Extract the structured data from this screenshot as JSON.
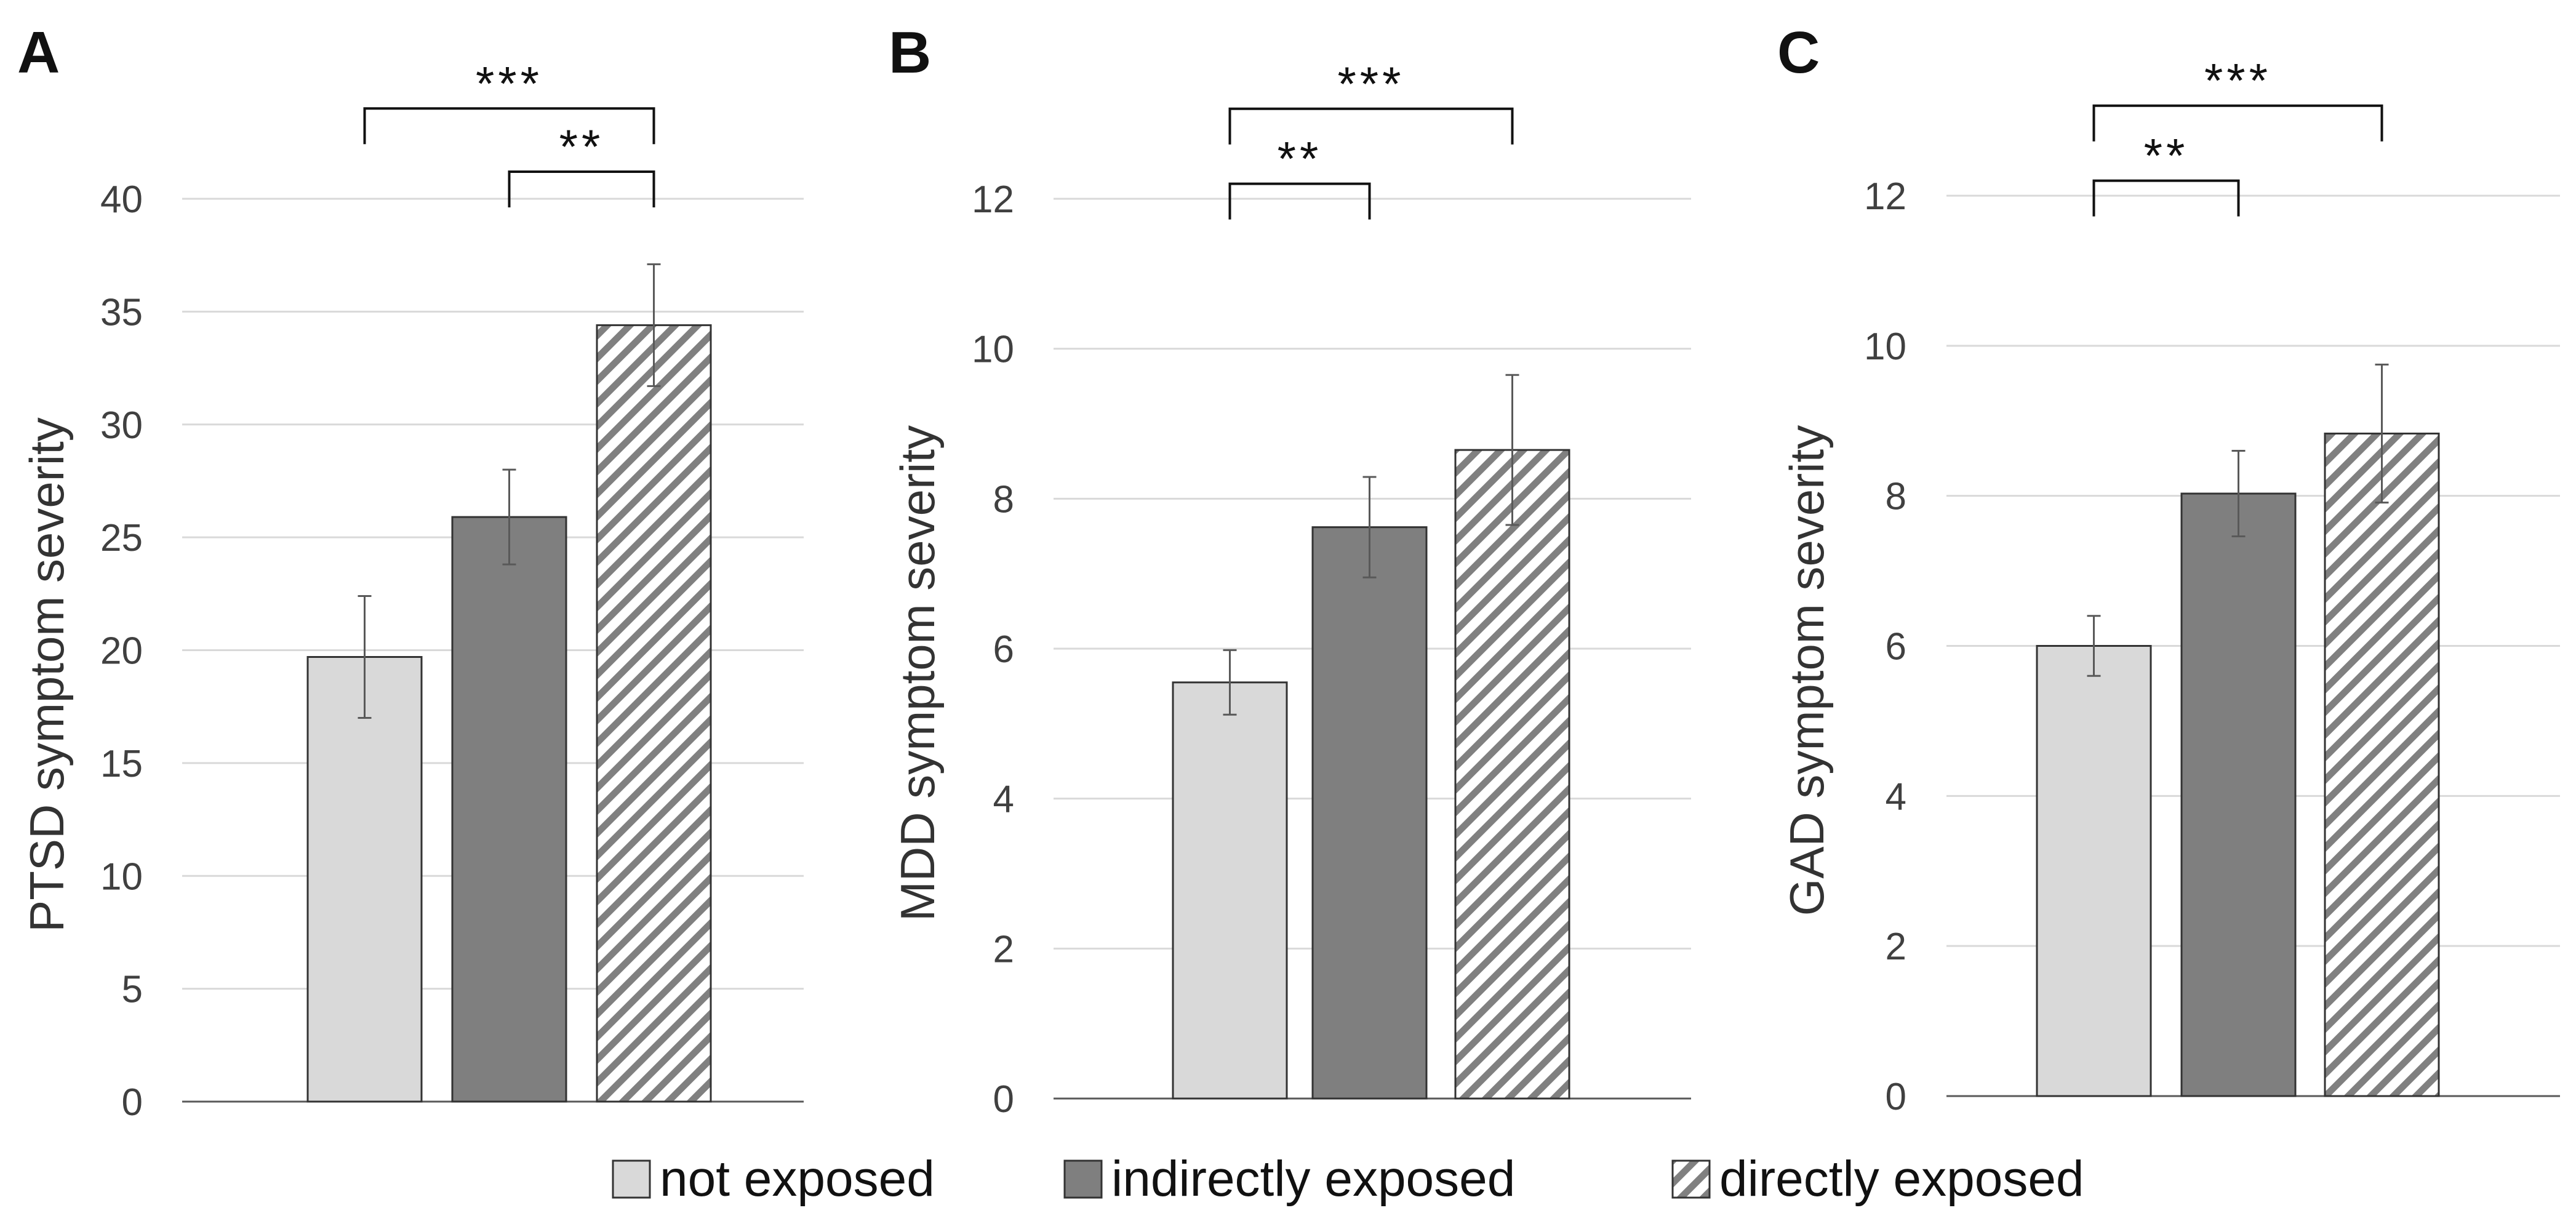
{
  "chart_data": [
    {
      "type": "bar",
      "panel": "A",
      "ylabel": "PTSD symptom severity",
      "xlabel": "",
      "categories": [
        "not exposed",
        "indirectly exposed",
        "directly exposed"
      ],
      "values": [
        19.7,
        25.9,
        34.4
      ],
      "errors": [
        2.7,
        2.1,
        2.7
      ],
      "ylim": [
        0,
        40
      ],
      "yticks": [
        0,
        5,
        10,
        15,
        20,
        25,
        30,
        35,
        40
      ],
      "grid": true,
      "significance": [
        {
          "from": 0,
          "to": 2,
          "label": "***",
          "level": 44
        },
        {
          "from": 1,
          "to": 2,
          "label": "**",
          "level": 41.2
        }
      ]
    },
    {
      "type": "bar",
      "panel": "B",
      "ylabel": "MDD symptom severity",
      "xlabel": "",
      "categories": [
        "not exposed",
        "indirectly exposed",
        "directly exposed"
      ],
      "values": [
        5.55,
        7.62,
        8.65
      ],
      "errors": [
        0.43,
        0.67,
        1.0
      ],
      "ylim": [
        0,
        12
      ],
      "yticks": [
        0,
        2,
        4,
        6,
        8,
        10,
        12
      ],
      "grid": true,
      "significance": [
        {
          "from": 0,
          "to": 2,
          "label": "***",
          "level": 13.2
        },
        {
          "from": 0,
          "to": 1,
          "label": "**",
          "level": 12.2
        }
      ]
    },
    {
      "type": "bar",
      "panel": "C",
      "ylabel": "GAD symptom severity",
      "xlabel": "",
      "categories": [
        "not exposed",
        "indirectly exposed",
        "directly exposed"
      ],
      "values": [
        6.0,
        8.03,
        8.83
      ],
      "errors": [
        0.4,
        0.57,
        0.92
      ],
      "ylim": [
        0,
        12
      ],
      "yticks": [
        0,
        2,
        4,
        6,
        8,
        10,
        12
      ],
      "grid": true,
      "significance": [
        {
          "from": 0,
          "to": 2,
          "label": "***",
          "level": 13.2
        },
        {
          "from": 0,
          "to": 1,
          "label": "**",
          "level": 12.2
        }
      ]
    }
  ],
  "legend": {
    "placement": "bottom-center",
    "items": [
      {
        "label": "not exposed",
        "pattern": "solid-light",
        "color": "#d9d9d9"
      },
      {
        "label": "indirectly exposed",
        "pattern": "solid-dark",
        "color": "#7f7f7f"
      },
      {
        "label": "directly exposed",
        "pattern": "diagonal-stripes",
        "color": "#808080"
      }
    ]
  },
  "colors": {
    "bar_light": "#d9d9d9",
    "bar_dark": "#7f7f7f",
    "stripe": "#808080",
    "grid": "#d9d9d9",
    "axis": "#595959",
    "bar_edge": "#333333"
  }
}
